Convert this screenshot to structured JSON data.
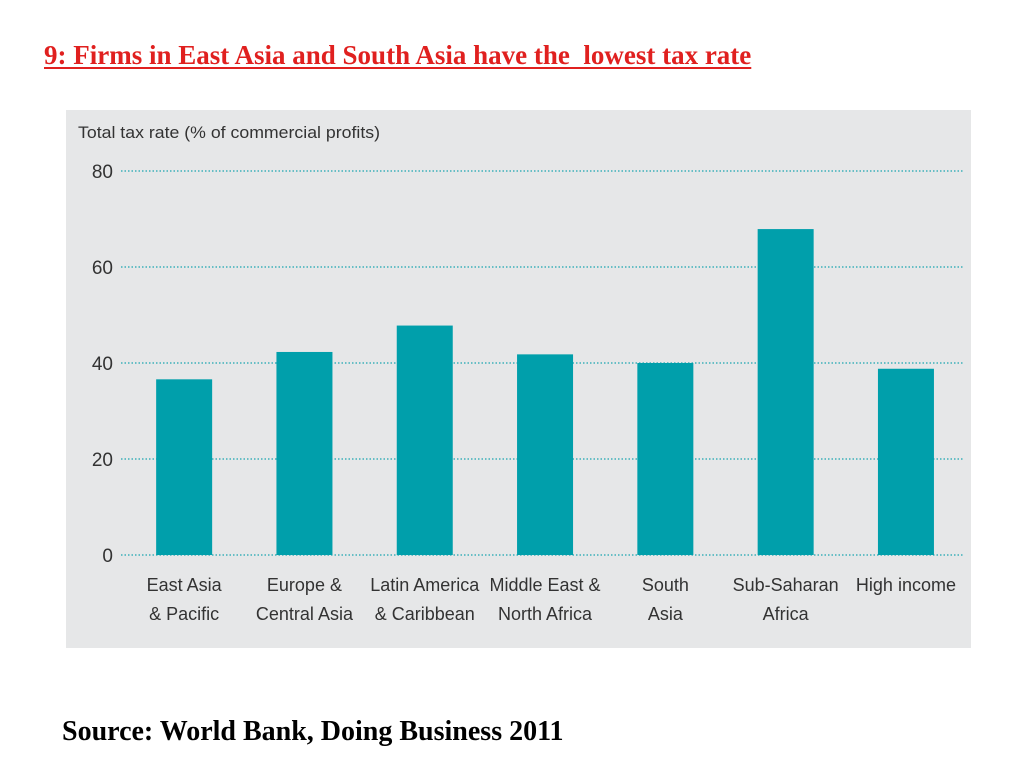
{
  "slide": {
    "title": "9: Firms in East Asia and South Asia have the  lowest tax rate",
    "source": "Source: World Bank, Doing Business 2011"
  },
  "colors": {
    "title": "#e0201f",
    "bar": "#009fab",
    "panel_background": "#e6e7e8",
    "gridline": "#1aa5b0",
    "text": "#333333"
  },
  "chart_data": {
    "type": "bar",
    "title": "",
    "ylabel": "Total tax rate (% of commercial profits)",
    "xlabel": "",
    "categories": [
      [
        "East Asia",
        "& Pacific"
      ],
      [
        "Europe &",
        "Central Asia"
      ],
      [
        "Latin America",
        "& Caribbean"
      ],
      [
        "Middle East &",
        "North Africa"
      ],
      [
        "South",
        "Asia"
      ],
      [
        "Sub-Saharan",
        "Africa"
      ],
      [
        "High income"
      ]
    ],
    "values": [
      36.6,
      42.3,
      47.8,
      41.8,
      40.0,
      67.9,
      38.8
    ],
    "ylim": [
      0,
      80
    ],
    "yticks": [
      "0",
      "20",
      "40",
      "60",
      "80"
    ],
    "grid": true,
    "grid_style": "dotted horizontal",
    "legend": "none"
  }
}
